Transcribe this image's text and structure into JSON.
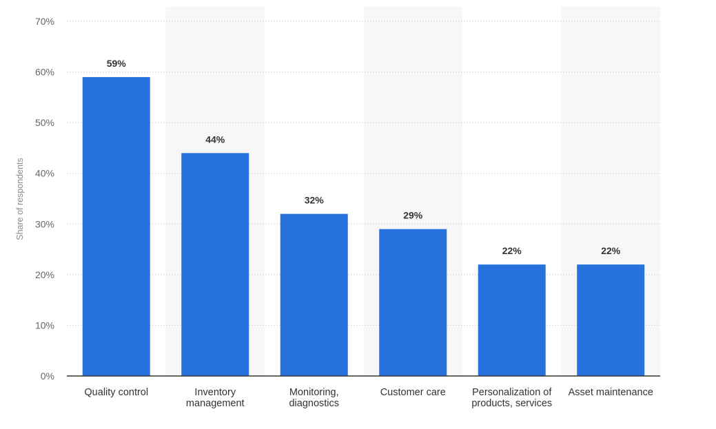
{
  "chart_data": {
    "type": "bar",
    "ylabel": "Share of respondents",
    "xlabel": "",
    "ylim": [
      0,
      70
    ],
    "yticks": [
      0,
      10,
      20,
      30,
      40,
      50,
      60,
      70
    ],
    "ytick_labels": [
      "0%",
      "10%",
      "20%",
      "30%",
      "40%",
      "50%",
      "60%",
      "70%"
    ],
    "categories": [
      [
        "Quality control"
      ],
      [
        "Inventory",
        "management"
      ],
      [
        "Monitoring,",
        "diagnostics"
      ],
      [
        "Customer care"
      ],
      [
        "Personalization of",
        "products, services"
      ],
      [
        "Asset maintenance"
      ]
    ],
    "values": [
      59,
      44,
      32,
      29,
      22,
      22
    ],
    "value_labels": [
      "59%",
      "44%",
      "32%",
      "29%",
      "22%",
      "22%"
    ],
    "grid": true,
    "bar_color": "#2872dd",
    "alt_band_color": "#f7f7f7"
  }
}
